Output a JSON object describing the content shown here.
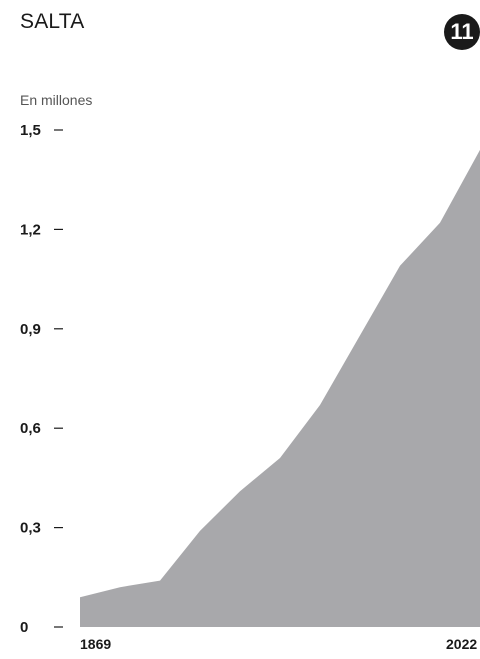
{
  "header": {
    "title": "SALTA",
    "badge": "11"
  },
  "chart_data": {
    "type": "area",
    "title": "SALTA",
    "ylabel": "En millones",
    "xlabel": "",
    "ylim": [
      0,
      1.5
    ],
    "y_ticks": [
      0,
      0.3,
      0.6,
      0.9,
      1.2,
      1.5
    ],
    "y_tick_labels": [
      "0",
      "0,3",
      "0,6",
      "0,9",
      "1,2",
      "1,5"
    ],
    "x_tick_labels": [
      "1869",
      "2022"
    ],
    "grid": false,
    "fill_color": "#a8a8ab",
    "series": [
      {
        "values": [
          0.09,
          0.12,
          0.14,
          0.29,
          0.41,
          0.51,
          0.67,
          0.88,
          1.09,
          1.22,
          1.44
        ]
      }
    ]
  }
}
